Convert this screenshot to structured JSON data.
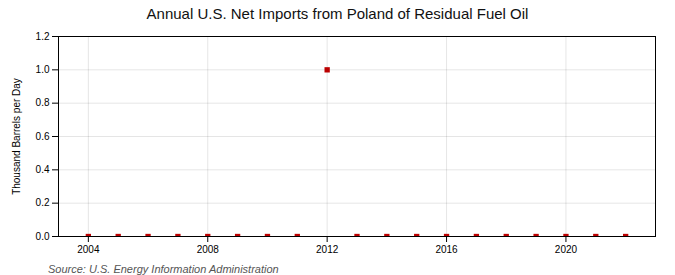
{
  "chart_data": {
    "type": "scatter",
    "title": "Annual U.S. Net Imports from Poland of Residual Fuel Oil",
    "ylabel": "Thousand Barrels per Day",
    "source": "Source: U.S. Energy Information Administration",
    "x": [
      2004,
      2005,
      2006,
      2007,
      2008,
      2009,
      2010,
      2011,
      2012,
      2013,
      2014,
      2015,
      2016,
      2017,
      2018,
      2019,
      2020,
      2021,
      2022
    ],
    "values": [
      0,
      0,
      0,
      0,
      0,
      0,
      0,
      0,
      1.0,
      0,
      0,
      0,
      0,
      0,
      0,
      0,
      0,
      0,
      0
    ],
    "color": "#bb0000",
    "marker": "square",
    "xlim": [
      2003,
      2023
    ],
    "ylim": [
      0,
      1.2
    ],
    "xticks": [
      2004,
      2008,
      2012,
      2016,
      2020
    ],
    "yticks": [
      {
        "value": 0,
        "label": "0.0"
      },
      0.2,
      0.4,
      0.6,
      0.8,
      {
        "value": 1,
        "label": "1.0"
      },
      1.2
    ],
    "grid": true
  }
}
